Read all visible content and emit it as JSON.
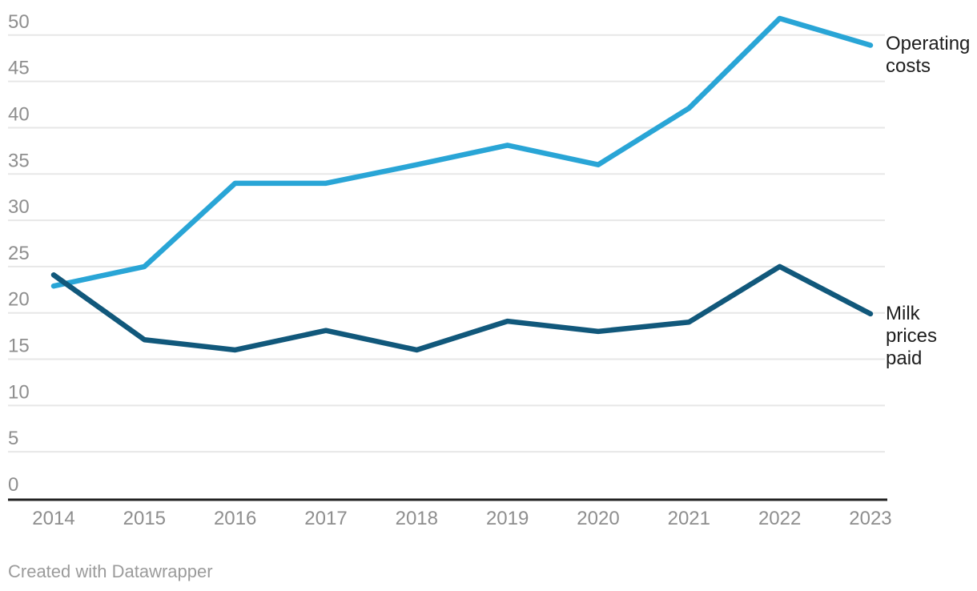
{
  "chart_data": {
    "type": "line",
    "title": "",
    "xlabel": "",
    "ylabel": "",
    "x": [
      2014,
      2015,
      2016,
      2017,
      2018,
      2019,
      2020,
      2021,
      2022,
      2023
    ],
    "series": [
      {
        "id": "operating-costs",
        "name": "Operating costs",
        "color": "#29A5D6",
        "values": [
          22.9,
          25.0,
          34.0,
          34.0,
          36.0,
          38.1,
          36.0,
          42.1,
          51.8,
          48.9
        ]
      },
      {
        "id": "milk-prices-paid",
        "name": "Milk prices paid",
        "color": "#11587B",
        "values": [
          24.1,
          17.1,
          16.0,
          18.1,
          16.0,
          19.1,
          18.0,
          19.0,
          25.0,
          19.9
        ]
      }
    ],
    "ylim": [
      0,
      52
    ],
    "yticks": [
      0,
      5,
      10,
      15,
      20,
      25,
      30,
      35,
      40,
      45,
      50
    ],
    "grid": "horizontal",
    "legend_position": "direct-labels-right"
  },
  "colors": {
    "grid": "#e7e7e7",
    "axis": "#222222",
    "tick_text": "#8e8e8e",
    "label_text": "#1d1d1d",
    "footer_text": "#9b9b9b"
  },
  "footer": {
    "text": "Created with Datawrapper"
  }
}
